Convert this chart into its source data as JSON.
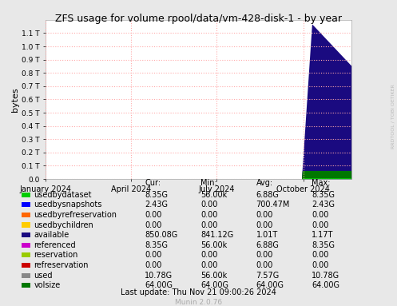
{
  "title": "ZFS usage for volume rpool/data/vm-428-disk-1 - by year",
  "ylabel": "bytes",
  "bg_color": "#e8e8e8",
  "plot_bg_color": "#ffffff",
  "grid_color": "#ffaaaa",
  "ytick_labels": [
    "0.0",
    "0.1 T",
    "0.2 T",
    "0.3 T",
    "0.4 T",
    "0.5 T",
    "0.6 T",
    "0.7 T",
    "0.8 T",
    "0.9 T",
    "1.0 T",
    "1.1 T"
  ],
  "xtick_labels": [
    "January 2024",
    "April 2024",
    "July 2024",
    "October 2024"
  ],
  "watermark": "RRDTOOL / TOBI OETIKER",
  "munin_version": "Munin 2.0.76",
  "last_update": "Last update: Thu Nov 21 09:00:26 2024",
  "legend": [
    {
      "label": "usedbydataset",
      "color": "#00cc00",
      "cur": "8.35G",
      "min": "56.00k",
      "avg": "6.88G",
      "max": "8.35G"
    },
    {
      "label": "usedbysnapshots",
      "color": "#0000ff",
      "cur": "2.43G",
      "min": "0.00",
      "avg": "700.47M",
      "max": "2.43G"
    },
    {
      "label": "usedbyrefreservation",
      "color": "#ff6600",
      "cur": "0.00",
      "min": "0.00",
      "avg": "0.00",
      "max": "0.00"
    },
    {
      "label": "usedbychildren",
      "color": "#ffcc00",
      "cur": "0.00",
      "min": "0.00",
      "avg": "0.00",
      "max": "0.00"
    },
    {
      "label": "available",
      "color": "#1a0a80",
      "cur": "850.08G",
      "min": "841.12G",
      "avg": "1.01T",
      "max": "1.17T"
    },
    {
      "label": "referenced",
      "color": "#cc00cc",
      "cur": "8.35G",
      "min": "56.00k",
      "avg": "6.88G",
      "max": "8.35G"
    },
    {
      "label": "reservation",
      "color": "#99cc00",
      "cur": "0.00",
      "min": "0.00",
      "avg": "0.00",
      "max": "0.00"
    },
    {
      "label": "refreservation",
      "color": "#cc0000",
      "cur": "0.00",
      "min": "0.00",
      "avg": "0.00",
      "max": "0.00"
    },
    {
      "label": "used",
      "color": "#888888",
      "cur": "10.78G",
      "min": "56.00k",
      "avg": "7.57G",
      "max": "10.78G"
    },
    {
      "label": "volsize",
      "color": "#007700",
      "cur": "64.00G",
      "min": "64.00G",
      "avg": "64.00G",
      "max": "64.00G"
    }
  ]
}
